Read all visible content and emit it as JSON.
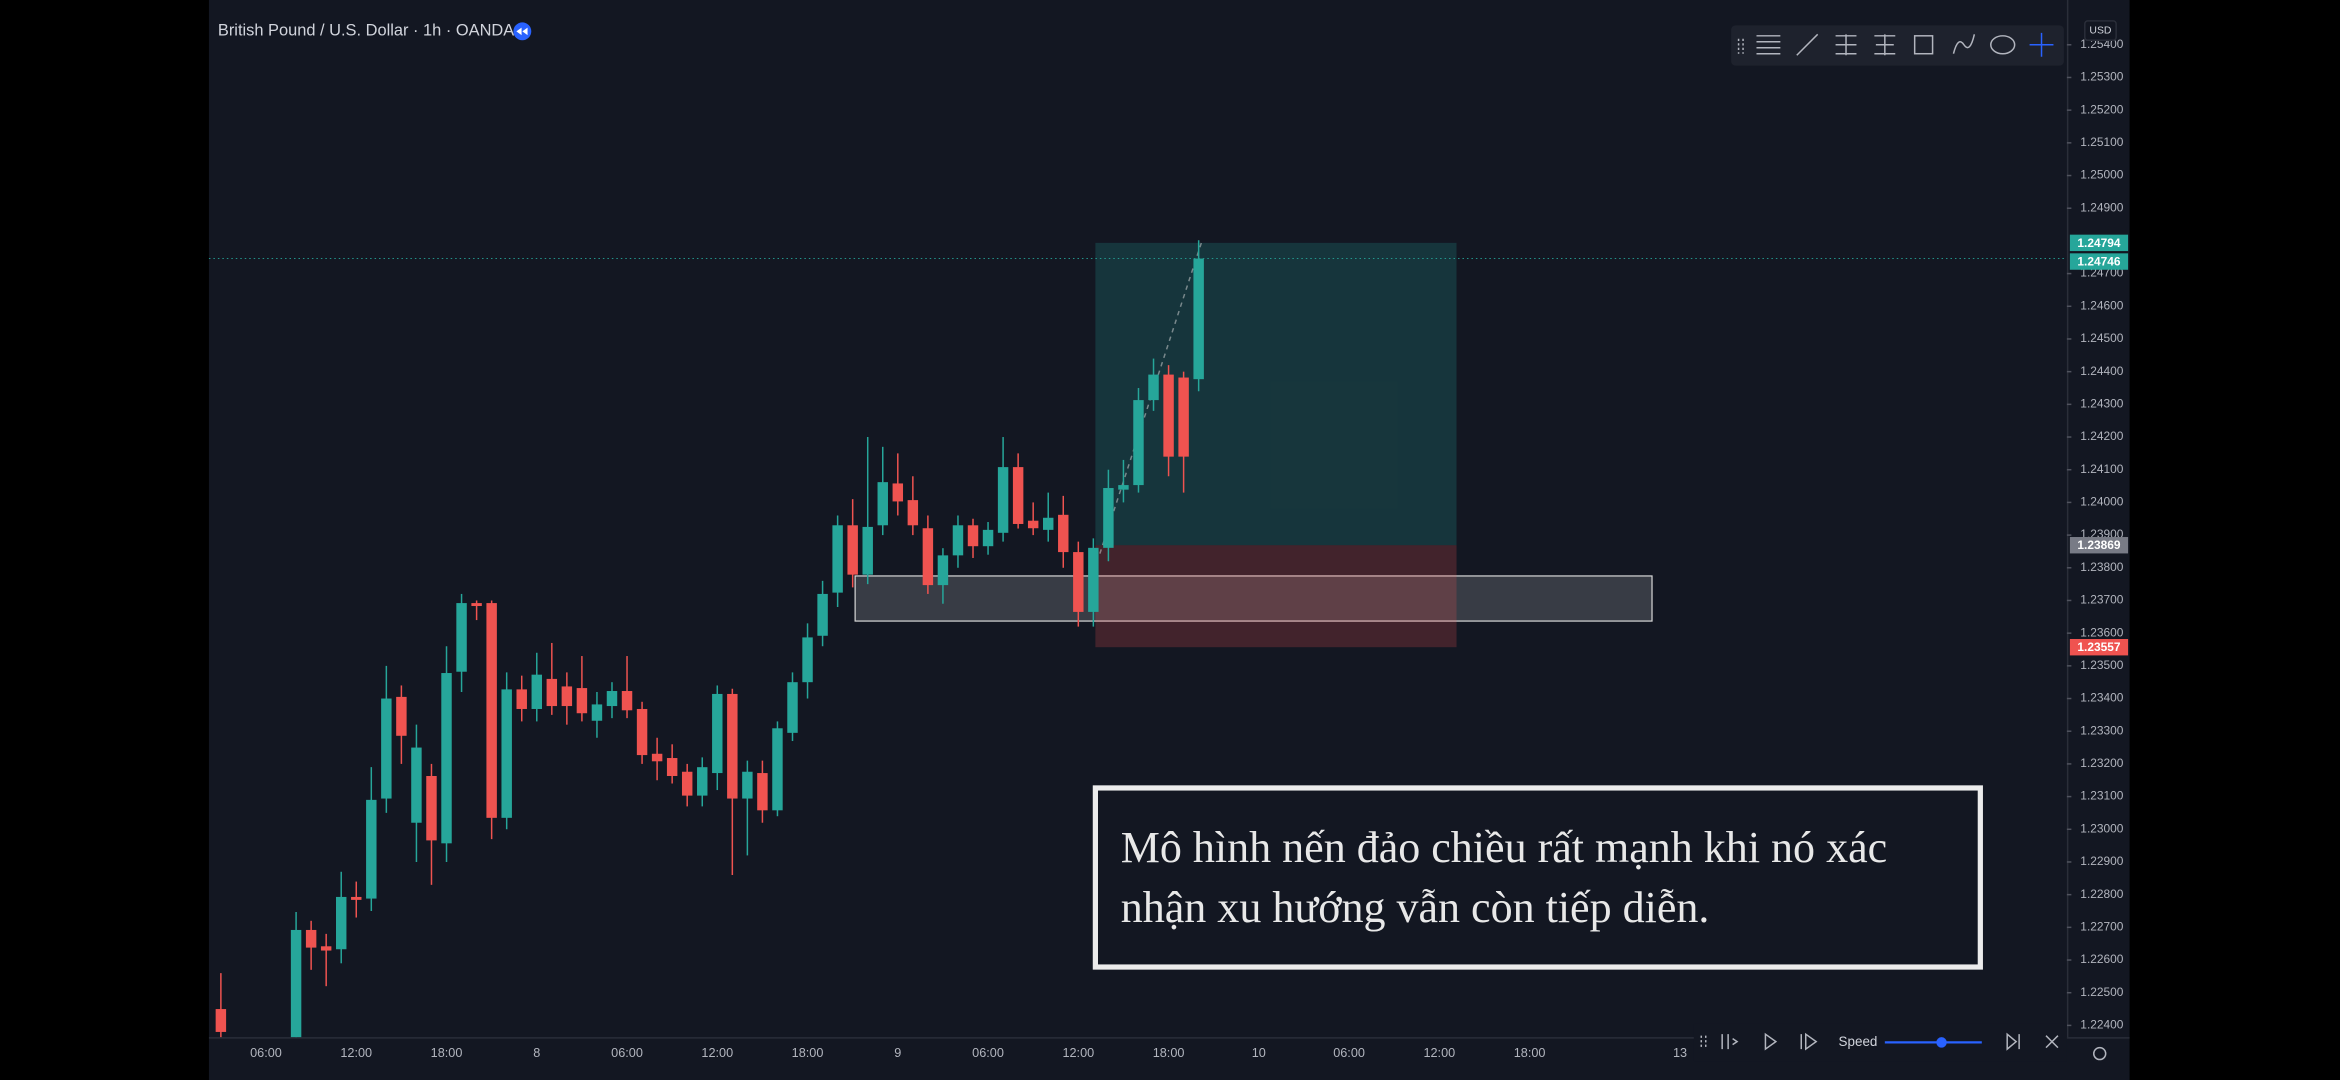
{
  "chart_data": {
    "type": "candlestick",
    "title": "British Pound / U.S. Dollar · 1h · OANDA",
    "currency": "USD",
    "speed_label": "Speed",
    "annotation": [
      "Mô hình nến đảo chiều rất mạnh khi nó xác",
      "nhận xu hướng vẫn còn tiếp diễn."
    ],
    "up_color": "#26a69a",
    "down_color": "#ef5350",
    "grid": false,
    "categories": [
      null,
      null,
      null,
      "06:00",
      null,
      null,
      null,
      null,
      null,
      "12:00",
      null,
      null,
      null,
      null,
      null,
      "18:00",
      null,
      null,
      null,
      null,
      null,
      "8",
      null,
      null,
      null,
      null,
      null,
      "06:00",
      null,
      null,
      null,
      null,
      null,
      "12:00",
      null,
      null,
      null,
      null,
      null,
      "18:00",
      null,
      null,
      null,
      null,
      null,
      "9",
      null,
      null,
      null,
      null,
      null,
      "06:00",
      null,
      null,
      null,
      null,
      null,
      "12:00",
      null,
      null,
      null,
      null,
      null,
      "18:00",
      null,
      null,
      null,
      null,
      null,
      "10",
      null,
      null,
      null,
      null,
      null,
      "06:00",
      null,
      null,
      null,
      null,
      null,
      "12:00",
      null,
      null,
      null,
      null,
      null,
      "18:00",
      null,
      null,
      null,
      null,
      null,
      null,
      null,
      null,
      null,
      "13"
    ],
    "open": [
      1.2245,
      null,
      null,
      null,
      null,
      1.2233,
      1.22692,
      1.22642,
      1.22633,
      1.22793,
      1.22788,
      1.23094,
      1.23405,
      1.2302,
      1.23163,
      1.22957,
      1.23482,
      1.23692,
      1.23692,
      1.23035,
      1.23428,
      1.23368,
      1.2346,
      1.23437,
      1.23432,
      1.23332,
      1.23377,
      1.23423,
      1.23368,
      1.23231,
      1.23218,
      1.23176,
      1.23103,
      1.23172,
      1.23414,
      1.23094,
      1.23172,
      1.23058,
      1.23295,
      1.2345,
      1.23592,
      1.23724,
      1.2393,
      1.23779,
      1.2393,
      1.24058,
      1.24007,
      1.23921,
      1.23747,
      1.23838,
      1.2393,
      1.23866,
      1.23907,
      1.24108,
      1.23944,
      1.23916,
      1.23962,
      1.23848,
      1.23665,
      1.23861,
      1.24039,
      1.24053,
      1.24313,
      1.24391,
      1.24382,
      1.24377,
      null,
      null,
      null,
      null,
      null,
      null,
      null,
      null,
      null,
      null,
      null,
      null,
      null,
      null,
      null,
      null,
      null,
      null,
      null,
      null,
      null,
      null,
      null,
      null,
      null,
      null,
      null,
      null,
      null,
      null,
      null,
      null
    ],
    "high": [
      1.2256,
      null,
      null,
      null,
      null,
      1.22747,
      1.2272,
      1.2268,
      1.2287,
      1.2284,
      1.2319,
      1.235,
      1.2344,
      1.2332,
      1.232,
      1.2356,
      1.2372,
      1.237,
      1.237,
      1.2348,
      1.2347,
      1.2354,
      1.2357,
      1.2348,
      1.2353,
      1.2342,
      1.2345,
      1.2353,
      1.2339,
      1.2328,
      1.2326,
      1.232,
      1.2322,
      1.2344,
      1.2343,
      1.2321,
      1.2321,
      1.2333,
      1.2348,
      1.2363,
      1.2376,
      1.2396,
      1.2401,
      1.242,
      1.2417,
      1.2415,
      1.2408,
      1.2396,
      1.2386,
      1.2396,
      1.2395,
      1.2394,
      1.242,
      1.2415,
      1.24,
      1.2403,
      1.2402,
      1.2388,
      1.2389,
      1.241,
      1.2413,
      1.2435,
      1.2444,
      1.2442,
      1.244,
      1.24802,
      null,
      null,
      null,
      null,
      null,
      null,
      null,
      null,
      null,
      null,
      null,
      null,
      null,
      null,
      null,
      null,
      null,
      null,
      null,
      null,
      null,
      null,
      null,
      null,
      null,
      null,
      null,
      null,
      null,
      null,
      null,
      null
    ],
    "low": [
      1.2234,
      null,
      null,
      null,
      null,
      1.223,
      1.2257,
      1.2252,
      1.2259,
      1.2273,
      1.2275,
      1.2305,
      1.232,
      1.229,
      1.2283,
      1.229,
      1.2342,
      1.2364,
      1.2297,
      1.23,
      1.2333,
      1.2333,
      1.2335,
      1.2332,
      1.2333,
      1.2328,
      1.2334,
      1.2334,
      1.232,
      1.2315,
      1.2314,
      1.2307,
      1.2307,
      1.2312,
      1.2286,
      1.2292,
      1.2302,
      1.2304,
      1.2327,
      1.234,
      1.2356,
      1.2368,
      1.2374,
      1.2375,
      1.239,
      1.2396,
      1.239,
      1.2372,
      1.2369,
      1.238,
      1.2383,
      1.2384,
      1.2388,
      1.2392,
      1.239,
      1.2388,
      1.238,
      1.2362,
      1.2362,
      1.2382,
      1.24,
      1.2403,
      1.2428,
      1.2408,
      1.2403,
      1.2434,
      null,
      null,
      null,
      null,
      null,
      null,
      null,
      null,
      null,
      null,
      null,
      null,
      null,
      null,
      null,
      null,
      null,
      null,
      null,
      null,
      null,
      null,
      null,
      null,
      null,
      null,
      null,
      null,
      null,
      null,
      null,
      null
    ],
    "close": [
      1.2238,
      null,
      null,
      null,
      null,
      1.22692,
      1.22638,
      1.22629,
      1.22793,
      1.22784,
      1.2309,
      1.234,
      1.23286,
      1.2325,
      1.22966,
      1.23478,
      1.23692,
      1.23683,
      1.23035,
      1.23428,
      1.23368,
      1.23473,
      1.23377,
      1.23377,
      1.23355,
      1.23382,
      1.23423,
      1.23364,
      1.23227,
      1.23208,
      1.23163,
      1.23103,
      1.2319,
      1.23414,
      1.23094,
      1.23176,
      1.23058,
      1.23309,
      1.2345,
      1.23587,
      1.2372,
      1.2393,
      1.23779,
      1.23925,
      1.24062,
      1.24003,
      1.2393,
      1.23747,
      1.23838,
      1.2393,
      1.23866,
      1.23916,
      1.24108,
      1.23934,
      1.23921,
      1.23953,
      1.23848,
      1.23665,
      1.23861,
      1.24044,
      1.24053,
      1.24313,
      1.24391,
      1.2414,
      1.2414,
      1.24746,
      null,
      null,
      null,
      null,
      null,
      null,
      null,
      null,
      null,
      null,
      null,
      null,
      null,
      null,
      null,
      null,
      null,
      null,
      null,
      null,
      null,
      null,
      null,
      null,
      null,
      null,
      null,
      null,
      null,
      null,
      null,
      null
    ],
    "ylim": [
      1.22364,
      1.25537
    ],
    "yticks": [
      {
        "value": 1.254,
        "label": "1.25400"
      },
      {
        "value": 1.253,
        "label": "1.25300"
      },
      {
        "value": 1.252,
        "label": "1.25200"
      },
      {
        "value": 1.251,
        "label": "1.25100"
      },
      {
        "value": 1.25,
        "label": "1.25000"
      },
      {
        "value": 1.249,
        "label": "1.24900"
      },
      {
        "value": 1.247,
        "label": "1.24700"
      },
      {
        "value": 1.246,
        "label": "1.24600"
      },
      {
        "value": 1.245,
        "label": "1.24500"
      },
      {
        "value": 1.244,
        "label": "1.24400"
      },
      {
        "value": 1.243,
        "label": "1.24300"
      },
      {
        "value": 1.242,
        "label": "1.24200"
      },
      {
        "value": 1.241,
        "label": "1.24100"
      },
      {
        "value": 1.24,
        "label": "1.24000"
      },
      {
        "value": 1.239,
        "label": "1.23900"
      },
      {
        "value": 1.238,
        "label": "1.23800"
      },
      {
        "value": 1.237,
        "label": "1.23700"
      },
      {
        "value": 1.236,
        "label": "1.23600"
      },
      {
        "value": 1.235,
        "label": "1.23500"
      },
      {
        "value": 1.234,
        "label": "1.23400"
      },
      {
        "value": 1.233,
        "label": "1.23300"
      },
      {
        "value": 1.232,
        "label": "1.23200"
      },
      {
        "value": 1.231,
        "label": "1.23100"
      },
      {
        "value": 1.23,
        "label": "1.23000"
      },
      {
        "value": 1.229,
        "label": "1.22900"
      },
      {
        "value": 1.228,
        "label": "1.22800"
      },
      {
        "value": 1.227,
        "label": "1.22700"
      },
      {
        "value": 1.226,
        "label": "1.22600"
      },
      {
        "value": 1.225,
        "label": "1.22500"
      },
      {
        "value": 1.224,
        "label": "1.22400"
      }
    ],
    "position": {
      "target": 1.24794,
      "entry": 1.23869,
      "stop": 1.23557
    },
    "zone": [
      1.23637,
      1.23775
    ]
  }
}
